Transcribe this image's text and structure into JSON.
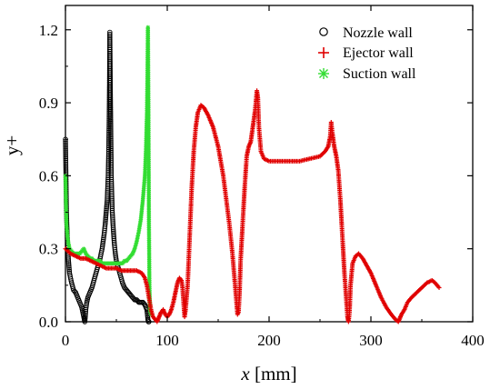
{
  "chart_data": {
    "type": "scatter",
    "xlabel_italic": "x",
    "xlabel_unit": " [mm]",
    "ylabel": "y+",
    "xlim": [
      0,
      400
    ],
    "ylim": [
      0,
      1.3
    ],
    "xticks": [
      "0",
      "100",
      "200",
      "300",
      "400"
    ],
    "yticks": [
      "0.0",
      "0.3",
      "0.6",
      "0.9",
      "1.2"
    ],
    "xtick_values": [
      0,
      100,
      200,
      300,
      400
    ],
    "ytick_values": [
      0.0,
      0.3,
      0.6,
      0.9,
      1.2
    ],
    "legend_position": "top-right",
    "series": [
      {
        "name": "Nozzle wall",
        "marker": "circle",
        "color": "#000000",
        "x": [
          0,
          0.5,
          1,
          2,
          3,
          4,
          6,
          8,
          10,
          12,
          14,
          16,
          17,
          18,
          18.5,
          19,
          19.5,
          20,
          21,
          22,
          24,
          26,
          28,
          30,
          32,
          34,
          36,
          38,
          39,
          40,
          41,
          42,
          42.5,
          43,
          43.3,
          43.6,
          44,
          44.5,
          45,
          46,
          47,
          48,
          49,
          50,
          52,
          54,
          56,
          58,
          60,
          62,
          64,
          66,
          68,
          70,
          72,
          74,
          76,
          78,
          79,
          80,
          80.5,
          81,
          81.5,
          82
        ],
        "y": [
          0.75,
          0.6,
          0.45,
          0.32,
          0.25,
          0.2,
          0.16,
          0.13,
          0.12,
          0.1,
          0.08,
          0.06,
          0.04,
          0.02,
          0.01,
          0.0,
          0.02,
          0.05,
          0.08,
          0.1,
          0.12,
          0.14,
          0.17,
          0.2,
          0.23,
          0.26,
          0.3,
          0.36,
          0.4,
          0.45,
          0.5,
          0.6,
          0.7,
          0.85,
          1.0,
          1.19,
          1.0,
          0.8,
          0.6,
          0.45,
          0.38,
          0.32,
          0.28,
          0.25,
          0.22,
          0.19,
          0.16,
          0.14,
          0.13,
          0.12,
          0.11,
          0.1,
          0.09,
          0.09,
          0.08,
          0.08,
          0.08,
          0.07,
          0.06,
          0.05,
          0.03,
          0.01,
          0.0,
          0.0
        ]
      },
      {
        "name": "Ejector wall",
        "marker": "plus",
        "color": "#e00000",
        "x": [
          0,
          5,
          10,
          15,
          20,
          25,
          30,
          35,
          40,
          45,
          50,
          55,
          60,
          65,
          70,
          75,
          78,
          80,
          82,
          84,
          86,
          88,
          90,
          92,
          94,
          96,
          98,
          100,
          102,
          104,
          106,
          108,
          110,
          112,
          114,
          115,
          116,
          117,
          118,
          120,
          122,
          124,
          126,
          128,
          130,
          133,
          136,
          140,
          145,
          150,
          155,
          158,
          161,
          164,
          166,
          168,
          169,
          170,
          171,
          172,
          174,
          176,
          178,
          180,
          182,
          184,
          186,
          187,
          188,
          189,
          190,
          192,
          195,
          200,
          210,
          220,
          230,
          240,
          250,
          255,
          258,
          260,
          261,
          262,
          264,
          266,
          268,
          270,
          272,
          274,
          276,
          277,
          278,
          279,
          280,
          282,
          285,
          288,
          292,
          296,
          300,
          305,
          310,
          315,
          320,
          324,
          327,
          328,
          330,
          333,
          336,
          340,
          345,
          350,
          355,
          360,
          363,
          365,
          367
        ],
        "y": [
          0.3,
          0.28,
          0.27,
          0.26,
          0.26,
          0.25,
          0.24,
          0.23,
          0.22,
          0.22,
          0.22,
          0.21,
          0.21,
          0.21,
          0.21,
          0.2,
          0.18,
          0.15,
          0.1,
          0.05,
          0.02,
          0.01,
          0.0,
          0.02,
          0.04,
          0.05,
          0.03,
          0.02,
          0.03,
          0.05,
          0.08,
          0.12,
          0.16,
          0.18,
          0.17,
          0.14,
          0.08,
          0.02,
          0.05,
          0.15,
          0.35,
          0.55,
          0.7,
          0.8,
          0.86,
          0.89,
          0.88,
          0.85,
          0.8,
          0.72,
          0.6,
          0.5,
          0.4,
          0.28,
          0.18,
          0.08,
          0.03,
          0.04,
          0.12,
          0.25,
          0.4,
          0.55,
          0.68,
          0.72,
          0.74,
          0.8,
          0.86,
          0.9,
          0.95,
          0.92,
          0.8,
          0.7,
          0.67,
          0.66,
          0.66,
          0.66,
          0.66,
          0.67,
          0.68,
          0.7,
          0.72,
          0.76,
          0.82,
          0.78,
          0.72,
          0.68,
          0.62,
          0.5,
          0.35,
          0.2,
          0.08,
          0.02,
          0.0,
          0.04,
          0.15,
          0.24,
          0.27,
          0.28,
          0.26,
          0.23,
          0.2,
          0.15,
          0.1,
          0.06,
          0.03,
          0.01,
          0.0,
          0.01,
          0.03,
          0.05,
          0.08,
          0.1,
          0.12,
          0.14,
          0.16,
          0.17,
          0.16,
          0.15,
          0.14
        ]
      },
      {
        "name": "Suction wall",
        "marker": "asterisk",
        "color": "#33dd33",
        "x": [
          0,
          0.5,
          1,
          2,
          3,
          4,
          6,
          8,
          10,
          12,
          14,
          16,
          18,
          20,
          22,
          24,
          26,
          28,
          30,
          32,
          34,
          36,
          38,
          40,
          42,
          44,
          46,
          48,
          50,
          52,
          54,
          56,
          58,
          60,
          62,
          64,
          66,
          68,
          70,
          72,
          74,
          76,
          78,
          79,
          80,
          80.5,
          81,
          81.5,
          82,
          82.5,
          83,
          84
        ],
        "y": [
          0.6,
          0.48,
          0.4,
          0.35,
          0.32,
          0.3,
          0.29,
          0.28,
          0.28,
          0.28,
          0.28,
          0.29,
          0.3,
          0.28,
          0.27,
          0.26,
          0.26,
          0.25,
          0.25,
          0.25,
          0.25,
          0.24,
          0.24,
          0.24,
          0.24,
          0.24,
          0.24,
          0.24,
          0.24,
          0.24,
          0.24,
          0.24,
          0.25,
          0.25,
          0.26,
          0.27,
          0.28,
          0.3,
          0.33,
          0.37,
          0.42,
          0.5,
          0.6,
          0.7,
          0.85,
          1.0,
          1.21,
          0.9,
          0.4,
          0.15,
          0.05,
          0.03
        ]
      }
    ]
  }
}
